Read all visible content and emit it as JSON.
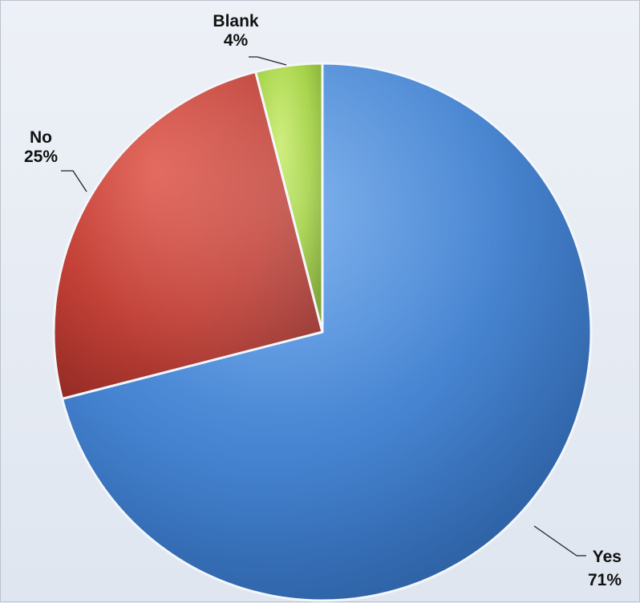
{
  "chart_data": {
    "type": "pie",
    "categories": [
      "Yes",
      "No",
      "Blank"
    ],
    "values": [
      71,
      25,
      4
    ],
    "value_labels": [
      "71%",
      "25%",
      "4%"
    ],
    "colors": [
      "#3f7fcf",
      "#c0392f",
      "#9acd32"
    ],
    "start_angle_deg": 0,
    "direction": "clockwise",
    "legend": "none",
    "data_labels": "outside with leader lines"
  }
}
